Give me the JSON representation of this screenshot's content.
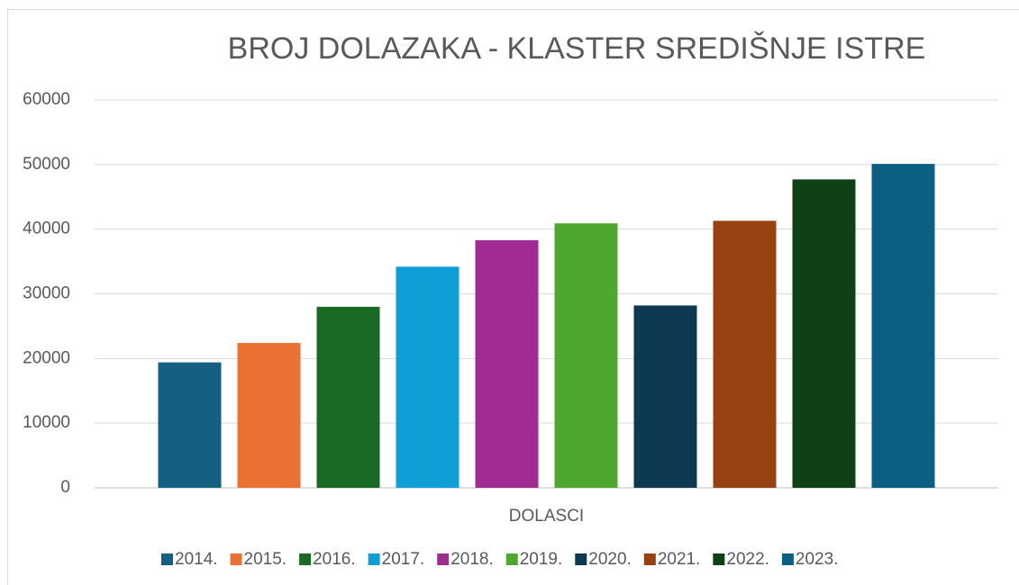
{
  "chart_data": {
    "type": "bar",
    "title": "BROJ DOLAZAKA - KLASTER SREDIŠNJE ISTRE",
    "categories": [
      "DOLASCI"
    ],
    "series": [
      {
        "name": "2014.",
        "color": "#156082",
        "values": [
          19400
        ]
      },
      {
        "name": "2015.",
        "color": "#e97132",
        "values": [
          22400
        ]
      },
      {
        "name": "2016.",
        "color": "#196b24",
        "values": [
          28000
        ]
      },
      {
        "name": "2017.",
        "color": "#0f9ed5",
        "values": [
          34200
        ]
      },
      {
        "name": "2018.",
        "color": "#a02b93",
        "values": [
          38300
        ]
      },
      {
        "name": "2019.",
        "color": "#4ea72e",
        "values": [
          40900
        ]
      },
      {
        "name": "2020.",
        "color": "#0d3a52",
        "values": [
          28200
        ]
      },
      {
        "name": "2021.",
        "color": "#984211",
        "values": [
          41300
        ]
      },
      {
        "name": "2022.",
        "color": "#0f4117",
        "values": [
          47700
        ]
      },
      {
        "name": "2023.",
        "color": "#0b5f82",
        "values": [
          50100
        ]
      }
    ],
    "ylim": [
      0,
      60000
    ],
    "yticks": [
      0,
      10000,
      20000,
      30000,
      40000,
      50000,
      60000
    ],
    "grid": true,
    "legend": "bottom"
  }
}
